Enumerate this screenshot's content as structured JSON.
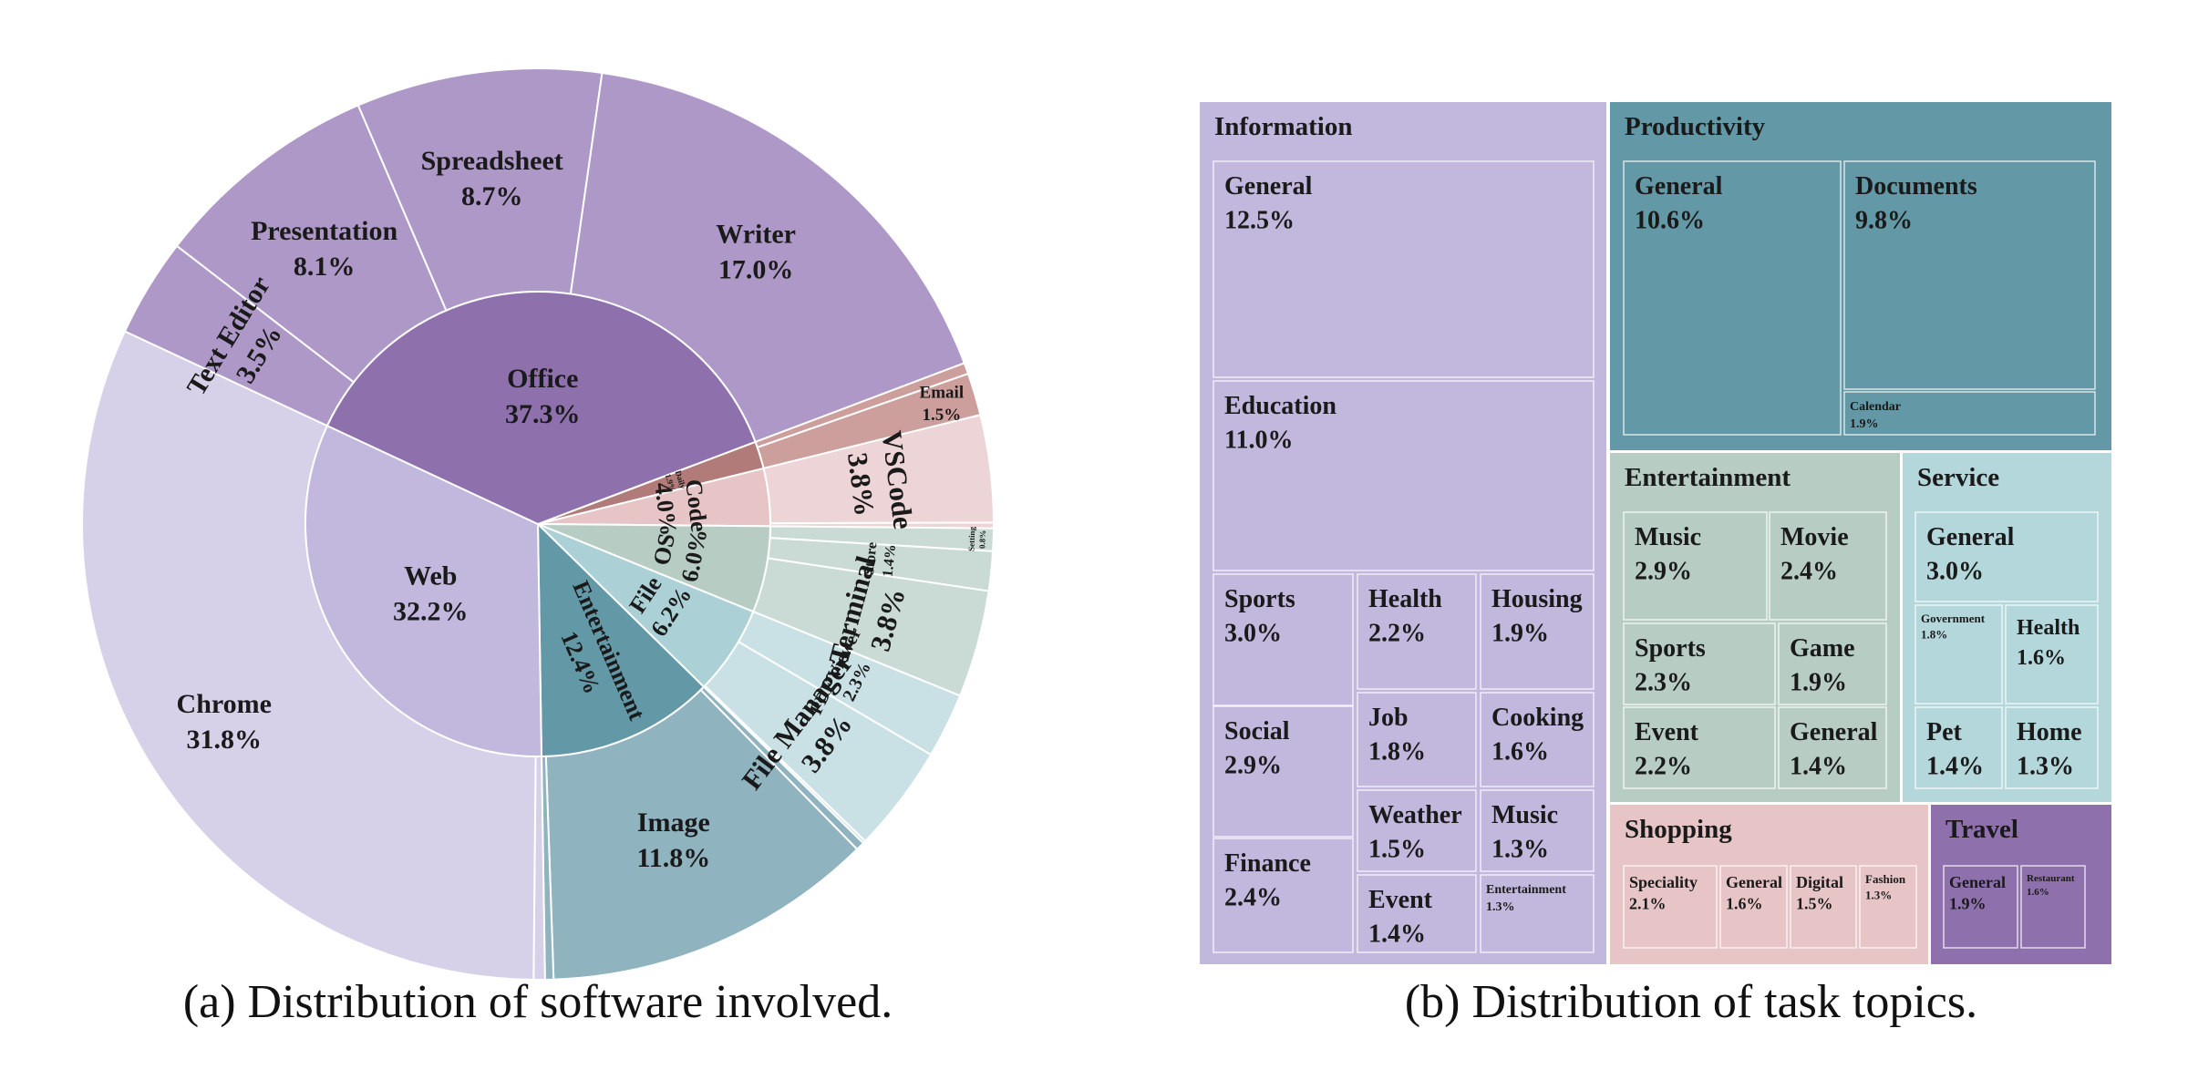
{
  "colors": {
    "office": "#8e70ad",
    "office_light": "#ad98c7",
    "web": "#c2b8dd",
    "web_light": "#d6d0e8",
    "entertainment": "#6398a6",
    "entertainment_light": "#8fb3bf",
    "file": "#abd0d6",
    "file_light": "#c9e1e5",
    "os": "#b7cdc4",
    "os_light": "#c9dbd4",
    "code": "#e7c5c7",
    "code_light": "#edd4d6",
    "daily": "#b07b78",
    "daily_light": "#cd9f9c",
    "productivity": "#6398a6",
    "info": "#c2b8dd",
    "ent_topic": "#b7cdc4",
    "service": "#b4d7dc",
    "shopping": "#e7c5c7",
    "travel": "#8e70ad"
  },
  "captions": {
    "a": "(a) Distribution of software involved.",
    "b": "(b) Distribution of task topics."
  },
  "chart_data": [
    {
      "type": "sunburst",
      "inner": [
        {
          "name": "Office",
          "pct": "37.3%",
          "value": 37.3,
          "color": "office"
        },
        {
          "name": "Daily",
          "pct": "1.9%",
          "value": 1.9,
          "color": "daily"
        },
        {
          "name": "Code",
          "pct": "4.0%",
          "value": 4.0,
          "color": "code"
        },
        {
          "name": "OS",
          "pct": "6.0%",
          "value": 6.0,
          "color": "os"
        },
        {
          "name": "File",
          "pct": "6.2%",
          "value": 6.2,
          "color": "file"
        },
        {
          "name": "Entertainment",
          "pct": "12.4%",
          "value": 12.4,
          "color": "entertainment"
        },
        {
          "name": "Web",
          "pct": "32.2%",
          "value": 32.2,
          "color": "web"
        }
      ],
      "outer": [
        {
          "name": "Writer",
          "pct": "17.0%",
          "value": 17.0,
          "parent": "Office",
          "color": "office_light"
        },
        {
          "name": "Spreadsheet",
          "pct": "8.7%",
          "value": 8.7,
          "parent": "Office",
          "color": "office_light"
        },
        {
          "name": "Presentation",
          "pct": "8.1%",
          "value": 8.1,
          "parent": "Office",
          "color": "office_light"
        },
        {
          "name": "Text Editor",
          "pct": "3.5%",
          "value": 3.5,
          "parent": "Office",
          "color": "office_light"
        },
        {
          "name": "Email",
          "pct": "1.5%",
          "value": 1.5,
          "parent": "Daily",
          "color": "daily_light"
        },
        {
          "name": "",
          "pct": "",
          "value": 0.4,
          "parent": "Daily",
          "color": "daily_light"
        },
        {
          "name": "VSCode",
          "pct": "3.8%",
          "value": 3.8,
          "parent": "Code",
          "color": "code_light"
        },
        {
          "name": "",
          "pct": "",
          "value": 0.2,
          "parent": "Code",
          "color": "code_light"
        },
        {
          "name": "Setting",
          "pct": "0.8%",
          "value": 0.8,
          "parent": "OS",
          "color": "os_light"
        },
        {
          "name": "Store",
          "pct": "1.4%",
          "value": 1.4,
          "parent": "OS",
          "color": "os_light"
        },
        {
          "name": "Terminal",
          "pct": "3.8%",
          "value": 3.8,
          "parent": "OS",
          "color": "os_light"
        },
        {
          "name": "PDF Viewer",
          "pct": "2.3%",
          "value": 2.3,
          "parent": "File",
          "color": "file_light"
        },
        {
          "name": "File Manager",
          "pct": "3.8%",
          "value": 3.8,
          "parent": "File",
          "color": "file_light"
        },
        {
          "name": "",
          "pct": "",
          "value": 0.1,
          "parent": "File",
          "color": "file_light"
        },
        {
          "name": "",
          "pct": "",
          "value": 0.3,
          "parent": "Entertainment",
          "color": "entertainment_light"
        },
        {
          "name": "Image",
          "pct": "11.8%",
          "value": 11.8,
          "parent": "Entertainment",
          "color": "entertainment_light"
        },
        {
          "name": "",
          "pct": "",
          "value": 0.3,
          "parent": "Entertainment",
          "color": "entertainment_light"
        },
        {
          "name": "",
          "pct": "",
          "value": 0.4,
          "parent": "Web",
          "color": "web_light"
        },
        {
          "name": "Chrome",
          "pct": "31.8%",
          "value": 31.8,
          "parent": "Web",
          "color": "web_light"
        }
      ]
    },
    {
      "type": "treemap",
      "groups": [
        {
          "name": "Information",
          "color": "info",
          "items": [
            {
              "name": "General",
              "pct": "12.5%"
            },
            {
              "name": "Education",
              "pct": "11.0%"
            },
            {
              "name": "Sports",
              "pct": "3.0%"
            },
            {
              "name": "Social",
              "pct": "2.9%"
            },
            {
              "name": "Finance",
              "pct": "2.4%"
            },
            {
              "name": "Health",
              "pct": "2.2%"
            },
            {
              "name": "Job",
              "pct": "1.8%"
            },
            {
              "name": "Weather",
              "pct": "1.5%"
            },
            {
              "name": "Event",
              "pct": "1.4%"
            },
            {
              "name": "Housing",
              "pct": "1.9%"
            },
            {
              "name": "Cooking",
              "pct": "1.6%"
            },
            {
              "name": "Music",
              "pct": "1.3%"
            },
            {
              "name": "Entertainment",
              "pct": "1.3%"
            }
          ]
        },
        {
          "name": "Productivity",
          "color": "productivity",
          "items": [
            {
              "name": "General",
              "pct": "10.6%"
            },
            {
              "name": "Documents",
              "pct": "9.8%"
            },
            {
              "name": "Calendar",
              "pct": "1.9%"
            }
          ]
        },
        {
          "name": "Entertainment",
          "color": "ent_topic",
          "items": [
            {
              "name": "Music",
              "pct": "2.9%"
            },
            {
              "name": "Movie",
              "pct": "2.4%"
            },
            {
              "name": "Sports",
              "pct": "2.3%"
            },
            {
              "name": "Game",
              "pct": "1.9%"
            },
            {
              "name": "Event",
              "pct": "2.2%"
            },
            {
              "name": "General",
              "pct": "1.4%"
            }
          ]
        },
        {
          "name": "Service",
          "color": "service",
          "items": [
            {
              "name": "General",
              "pct": "3.0%"
            },
            {
              "name": "Government",
              "pct": "1.8%"
            },
            {
              "name": "Health",
              "pct": "1.6%"
            },
            {
              "name": "Pet",
              "pct": "1.4%"
            },
            {
              "name": "Home",
              "pct": "1.3%"
            }
          ]
        },
        {
          "name": "Shopping",
          "color": "shopping",
          "items": [
            {
              "name": "Speciality",
              "pct": "2.1%"
            },
            {
              "name": "General",
              "pct": "1.6%"
            },
            {
              "name": "Digital",
              "pct": "1.5%"
            },
            {
              "name": "Fashion",
              "pct": "1.3%"
            }
          ]
        },
        {
          "name": "Travel",
          "color": "travel",
          "items": [
            {
              "name": "General",
              "pct": "1.9%"
            },
            {
              "name": "Restaurant",
              "pct": "1.6%"
            }
          ]
        }
      ]
    }
  ]
}
